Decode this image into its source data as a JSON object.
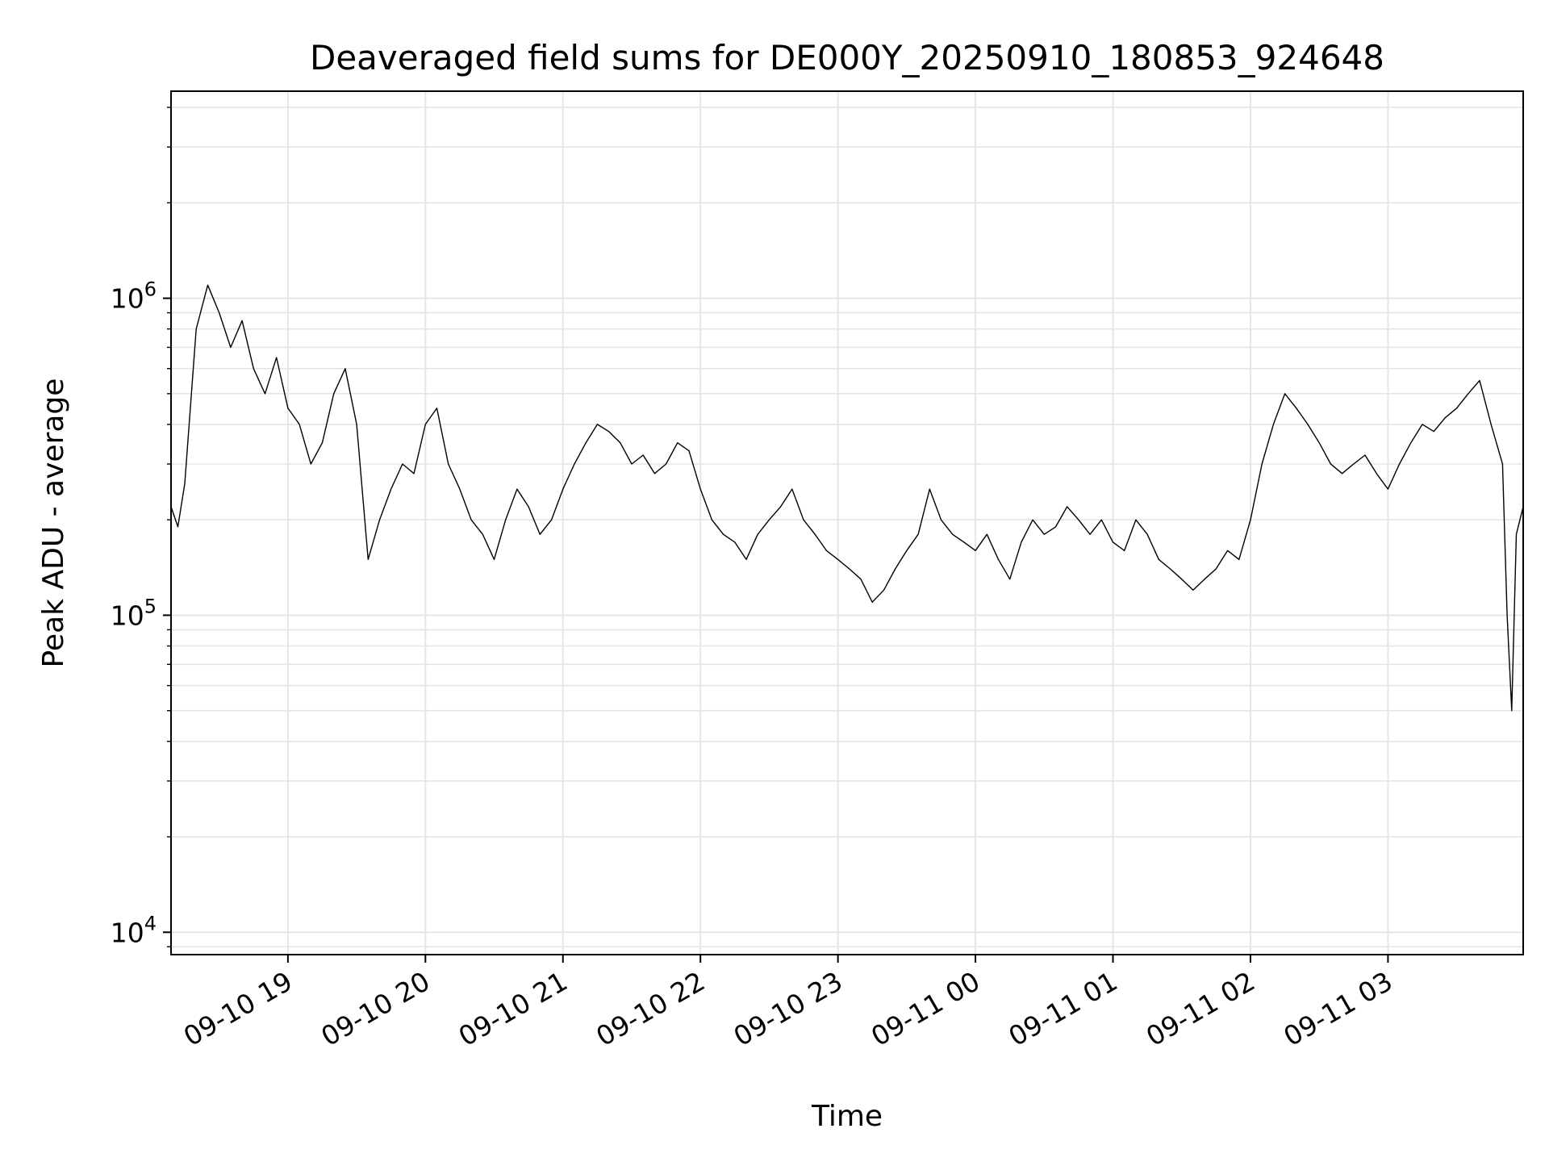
{
  "chart_data": {
    "type": "line",
    "title": "Deaveraged field sums for DE000Y_20250910_180853_924648",
    "xlabel": "Time",
    "ylabel": "Peak ADU - average",
    "yscale": "log",
    "xlim": [
      "2025-09-10 18:09",
      "2025-09-11 03:59"
    ],
    "ylim": [
      8500,
      4500000
    ],
    "grid": true,
    "line_color": "#000000",
    "x_ticks": [
      {
        "value": "2025-09-10 19:00",
        "label": "09-10 19"
      },
      {
        "value": "2025-09-10 20:00",
        "label": "09-10 20"
      },
      {
        "value": "2025-09-10 21:00",
        "label": "09-10 21"
      },
      {
        "value": "2025-09-10 22:00",
        "label": "09-10 22"
      },
      {
        "value": "2025-09-10 23:00",
        "label": "09-10 23"
      },
      {
        "value": "2025-09-11 00:00",
        "label": "09-11 00"
      },
      {
        "value": "2025-09-11 01:00",
        "label": "09-11 01"
      },
      {
        "value": "2025-09-11 02:00",
        "label": "09-11 02"
      },
      {
        "value": "2025-09-11 03:00",
        "label": "09-11 03"
      }
    ],
    "y_ticks": [
      {
        "value": 10000,
        "base": "10",
        "exp": "4"
      },
      {
        "value": 100000,
        "base": "10",
        "exp": "5"
      },
      {
        "value": 1000000,
        "base": "10",
        "exp": "6"
      }
    ],
    "series": [
      {
        "x": [
          "2025-09-10 18:09",
          "2025-09-10 18:12",
          "2025-09-10 18:15",
          "2025-09-10 18:20",
          "2025-09-10 18:25",
          "2025-09-10 18:30",
          "2025-09-10 18:35",
          "2025-09-10 18:40",
          "2025-09-10 18:45",
          "2025-09-10 18:50",
          "2025-09-10 18:55",
          "2025-09-10 19:00",
          "2025-09-10 19:05",
          "2025-09-10 19:10",
          "2025-09-10 19:15",
          "2025-09-10 19:20",
          "2025-09-10 19:25",
          "2025-09-10 19:30",
          "2025-09-10 19:35",
          "2025-09-10 19:40",
          "2025-09-10 19:45",
          "2025-09-10 19:50",
          "2025-09-10 19:55",
          "2025-09-10 20:00",
          "2025-09-10 20:05",
          "2025-09-10 20:10",
          "2025-09-10 20:15",
          "2025-09-10 20:20",
          "2025-09-10 20:25",
          "2025-09-10 20:30",
          "2025-09-10 20:35",
          "2025-09-10 20:40",
          "2025-09-10 20:45",
          "2025-09-10 20:50",
          "2025-09-10 20:55",
          "2025-09-10 21:00",
          "2025-09-10 21:05",
          "2025-09-10 21:10",
          "2025-09-10 21:15",
          "2025-09-10 21:20",
          "2025-09-10 21:25",
          "2025-09-10 21:30",
          "2025-09-10 21:35",
          "2025-09-10 21:40",
          "2025-09-10 21:45",
          "2025-09-10 21:50",
          "2025-09-10 21:55",
          "2025-09-10 22:00",
          "2025-09-10 22:05",
          "2025-09-10 22:10",
          "2025-09-10 22:15",
          "2025-09-10 22:20",
          "2025-09-10 22:25",
          "2025-09-10 22:30",
          "2025-09-10 22:35",
          "2025-09-10 22:40",
          "2025-09-10 22:45",
          "2025-09-10 22:50",
          "2025-09-10 22:55",
          "2025-09-10 23:00",
          "2025-09-10 23:05",
          "2025-09-10 23:10",
          "2025-09-10 23:15",
          "2025-09-10 23:20",
          "2025-09-10 23:25",
          "2025-09-10 23:30",
          "2025-09-10 23:35",
          "2025-09-10 23:40",
          "2025-09-10 23:45",
          "2025-09-10 23:50",
          "2025-09-10 23:55",
          "2025-09-11 00:00",
          "2025-09-11 00:05",
          "2025-09-11 00:10",
          "2025-09-11 00:15",
          "2025-09-11 00:20",
          "2025-09-11 00:25",
          "2025-09-11 00:30",
          "2025-09-11 00:35",
          "2025-09-11 00:40",
          "2025-09-11 00:45",
          "2025-09-11 00:50",
          "2025-09-11 00:55",
          "2025-09-11 01:00",
          "2025-09-11 01:05",
          "2025-09-11 01:10",
          "2025-09-11 01:15",
          "2025-09-11 01:20",
          "2025-09-11 01:25",
          "2025-09-11 01:30",
          "2025-09-11 01:35",
          "2025-09-11 01:40",
          "2025-09-11 01:45",
          "2025-09-11 01:50",
          "2025-09-11 01:55",
          "2025-09-11 02:00",
          "2025-09-11 02:05",
          "2025-09-11 02:10",
          "2025-09-11 02:15",
          "2025-09-11 02:20",
          "2025-09-11 02:25",
          "2025-09-11 02:30",
          "2025-09-11 02:35",
          "2025-09-11 02:40",
          "2025-09-11 02:45",
          "2025-09-11 02:50",
          "2025-09-11 02:55",
          "2025-09-11 03:00",
          "2025-09-11 03:05",
          "2025-09-11 03:10",
          "2025-09-11 03:15",
          "2025-09-11 03:20",
          "2025-09-11 03:25",
          "2025-09-11 03:30",
          "2025-09-11 03:35",
          "2025-09-11 03:40",
          "2025-09-11 03:45",
          "2025-09-11 03:50",
          "2025-09-11 03:52",
          "2025-09-11 03:54",
          "2025-09-11 03:56",
          "2025-09-11 03:59"
        ],
        "y": [
          220000,
          190000,
          260000,
          800000,
          1100000,
          900000,
          700000,
          850000,
          600000,
          500000,
          650000,
          450000,
          400000,
          300000,
          350000,
          500000,
          600000,
          400000,
          150000,
          200000,
          250000,
          300000,
          280000,
          400000,
          450000,
          300000,
          250000,
          200000,
          180000,
          150000,
          200000,
          250000,
          220000,
          180000,
          200000,
          250000,
          300000,
          350000,
          400000,
          380000,
          350000,
          300000,
          320000,
          280000,
          300000,
          350000,
          330000,
          250000,
          200000,
          180000,
          170000,
          150000,
          180000,
          200000,
          220000,
          250000,
          200000,
          180000,
          160000,
          150000,
          140000,
          130000,
          110000,
          120000,
          140000,
          160000,
          180000,
          250000,
          200000,
          180000,
          170000,
          160000,
          180000,
          150000,
          130000,
          170000,
          200000,
          180000,
          190000,
          220000,
          200000,
          180000,
          200000,
          170000,
          160000,
          200000,
          180000,
          150000,
          140000,
          130000,
          120000,
          130000,
          140000,
          160000,
          150000,
          200000,
          300000,
          400000,
          500000,
          450000,
          400000,
          350000,
          300000,
          280000,
          300000,
          320000,
          280000,
          250000,
          300000,
          350000,
          400000,
          380000,
          420000,
          450000,
          500000,
          550000,
          400000,
          300000,
          100000,
          50000,
          180000,
          220000
        ]
      }
    ]
  }
}
